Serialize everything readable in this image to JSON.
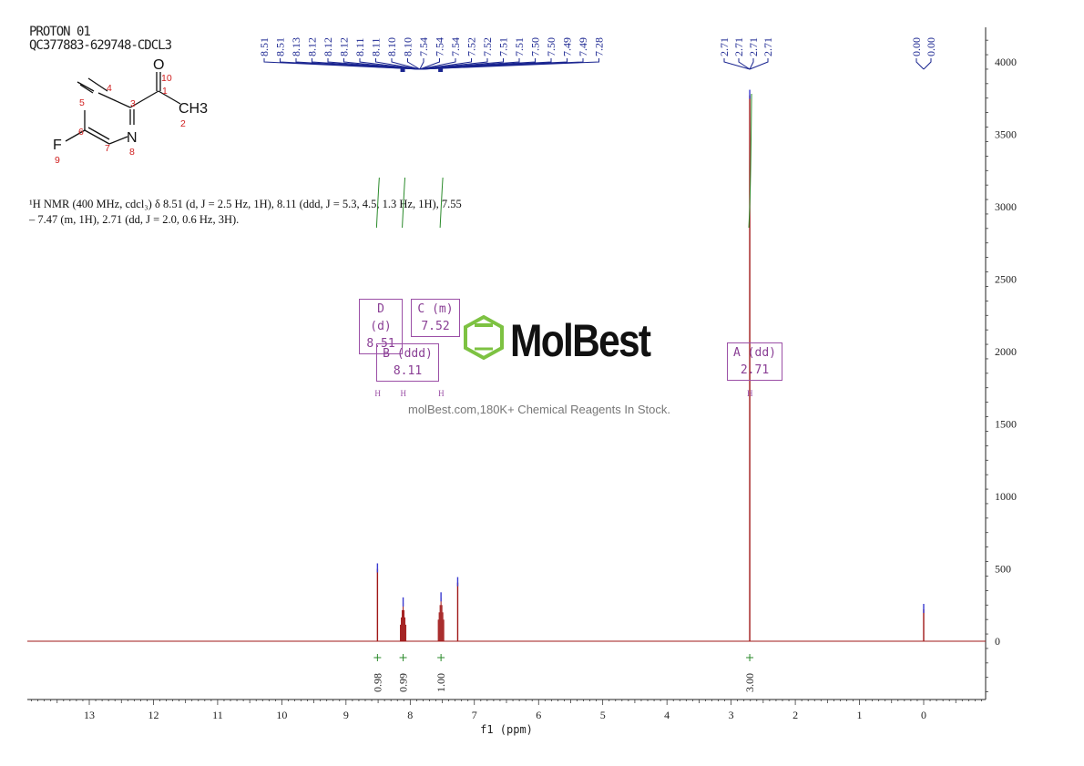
{
  "header": {
    "line1": "PROTON 01",
    "line2": "QC377883-629748-CDCL3"
  },
  "description": {
    "line1": "¹H NMR (400 MHz, cdcl₃) δ 8.51 (d, J = 2.5 Hz, 1H), 8.11 (ddd, J = 5.3, 4.5, 1.3 Hz, 1H), 7.55",
    "line2": "– 7.47 (m, 1H), 2.71 (dd, J = 2.0, 0.6 Hz, 3H)."
  },
  "structure": {
    "atoms": [
      "O",
      "CH3",
      "N",
      "F"
    ],
    "numbers": [
      "1",
      "2",
      "3",
      "4",
      "5",
      "6",
      "7",
      "8",
      "9",
      "10"
    ]
  },
  "watermark": {
    "logo": "MolBest",
    "text": "molBest.com,180K+ Chemical Reagents In Stock.",
    "logo_color": "#7dc242"
  },
  "multiplets": [
    {
      "label": "D (d)",
      "shift": "8.51"
    },
    {
      "label": "C (m)",
      "shift": "7.52"
    },
    {
      "label": "B (ddd)",
      "shift": "8.11"
    },
    {
      "label": "A (dd)",
      "shift": "2.71"
    }
  ],
  "chart_data": {
    "type": "line",
    "xlabel": "f1 (ppm)",
    "xlim": [
      14,
      -1
    ],
    "ylim": [
      -380,
      4150
    ],
    "xticks": [
      13,
      12,
      11,
      10,
      9,
      8,
      7,
      6,
      5,
      4,
      3,
      2,
      1,
      0
    ],
    "yticks": [
      0,
      500,
      1000,
      1500,
      2000,
      2500,
      3000,
      3500,
      4000
    ],
    "grid": false,
    "colors": {
      "spectrum": "#a01818",
      "peak_labels": "#1a2590",
      "integrals": "#2a8a2a",
      "boxes": "#9b4fa6"
    },
    "peaks": [
      {
        "ppm": 8.51,
        "intensity": 500
      },
      {
        "ppm": 8.11,
        "intensity": 265
      },
      {
        "ppm": 7.52,
        "intensity": 300
      },
      {
        "ppm": 7.26,
        "intensity": 405
      },
      {
        "ppm": 2.71,
        "intensity": 3770
      },
      {
        "ppm": 0.0,
        "intensity": 220
      }
    ],
    "peak_labels": {
      "group1": [
        "8.51",
        "8.51",
        "8.13",
        "8.12",
        "8.12",
        "8.12",
        "8.11",
        "8.11",
        "8.10",
        "8.10",
        "7.54",
        "7.54",
        "7.54",
        "7.52",
        "7.52",
        "7.51",
        "7.51",
        "7.50",
        "7.50",
        "7.49",
        "7.49",
        "7.28"
      ],
      "group2": [
        "2.71",
        "2.71",
        "2.71",
        "2.71"
      ],
      "group3": [
        "0.00",
        "0.00"
      ]
    },
    "integrals": [
      {
        "ppm": 8.51,
        "value": "0.98"
      },
      {
        "ppm": 8.11,
        "value": "0.99"
      },
      {
        "ppm": 7.52,
        "value": "1.00"
      },
      {
        "ppm": 2.71,
        "value": "3.00"
      }
    ]
  }
}
